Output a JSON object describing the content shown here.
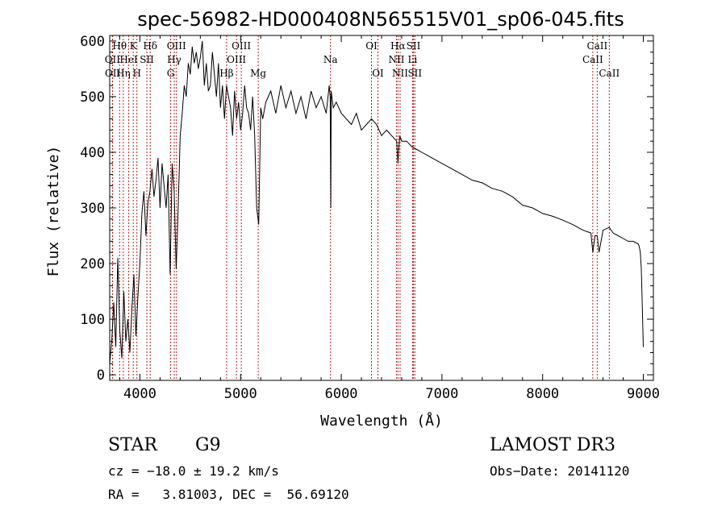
{
  "chart_data": {
    "type": "line",
    "title": "spec-56982-HD000408N565515V01_sp06-045.fits",
    "xlabel": "Wavelength (Å)",
    "ylabel": "Flux (relative)",
    "xlim": [
      3700,
      9100
    ],
    "ylim": [
      -10,
      610
    ],
    "xticks": [
      4000,
      5000,
      6000,
      7000,
      8000,
      9000
    ],
    "yticks": [
      0,
      100,
      200,
      300,
      400,
      500,
      600
    ],
    "grid": false,
    "series": [
      {
        "x": [
          3700,
          3720,
          3740,
          3760,
          3780,
          3800,
          3820,
          3840,
          3860,
          3880,
          3900,
          3920,
          3940,
          3960,
          3980,
          4000,
          4020,
          4040,
          4060,
          4080,
          4100,
          4120,
          4140,
          4160,
          4180,
          4200,
          4220,
          4240,
          4260,
          4280,
          4300,
          4320,
          4340,
          4360,
          4380,
          4400,
          4420,
          4440,
          4460,
          4480,
          4500,
          4520,
          4540,
          4560,
          4580,
          4600,
          4620,
          4640,
          4660,
          4680,
          4700,
          4720,
          4740,
          4760,
          4780,
          4800,
          4820,
          4840,
          4860,
          4880,
          4900,
          4920,
          4940,
          4960,
          4980,
          5000,
          5020,
          5040,
          5060,
          5080,
          5100,
          5120,
          5140,
          5160,
          5180,
          5200,
          5220,
          5250,
          5300,
          5350,
          5400,
          5450,
          5500,
          5550,
          5600,
          5650,
          5700,
          5750,
          5800,
          5850,
          5880,
          5890,
          5896,
          5900,
          5920,
          5950,
          6000,
          6050,
          6100,
          6150,
          6200,
          6250,
          6300,
          6350,
          6400,
          6450,
          6500,
          6550,
          6563,
          6580,
          6600,
          6650,
          6700,
          6750,
          6800,
          6850,
          6900,
          6950,
          7000,
          7100,
          7200,
          7300,
          7400,
          7500,
          7600,
          7700,
          7800,
          7900,
          8000,
          8100,
          8200,
          8300,
          8400,
          8480,
          8498,
          8520,
          8542,
          8560,
          8600,
          8662,
          8700,
          8750,
          8800,
          8850,
          8900,
          8950,
          8960,
          8970,
          8980,
          8990,
          9000
        ],
        "y": [
          20,
          60,
          130,
          50,
          210,
          80,
          30,
          150,
          60,
          100,
          40,
          120,
          180,
          70,
          140,
          200,
          290,
          330,
          250,
          310,
          330,
          370,
          320,
          350,
          390,
          300,
          380,
          340,
          300,
          360,
          180,
          380,
          330,
          190,
          300,
          430,
          470,
          520,
          500,
          560,
          540,
          590,
          560,
          580,
          550,
          570,
          600,
          520,
          560,
          510,
          520,
          580,
          540,
          500,
          560,
          480,
          520,
          460,
          520,
          500,
          480,
          430,
          510,
          460,
          490,
          440,
          470,
          520,
          480,
          470,
          440,
          500,
          430,
          300,
          270,
          480,
          460,
          490,
          510,
          470,
          520,
          480,
          510,
          470,
          500,
          460,
          510,
          480,
          500,
          470,
          520,
          500,
          300,
          510,
          480,
          490,
          470,
          460,
          450,
          470,
          440,
          450,
          460,
          450,
          430,
          440,
          430,
          420,
          380,
          430,
          420,
          420,
          410,
          405,
          400,
          395,
          390,
          385,
          380,
          370,
          360,
          350,
          345,
          335,
          330,
          320,
          305,
          300,
          290,
          285,
          278,
          270,
          260,
          255,
          220,
          250,
          250,
          220,
          260,
          265,
          255,
          250,
          245,
          240,
          240,
          235,
          230,
          220,
          190,
          120,
          50
        ]
      }
    ],
    "spectral_lines": [
      {
        "label": "Hθ",
        "x": 3798,
        "row": 0
      },
      {
        "label": "OII",
        "x": 3727,
        "row": 1
      },
      {
        "label": "OII",
        "x": 3729,
        "row": 2
      },
      {
        "label": "HeI",
        "x": 3889,
        "row": 1
      },
      {
        "label": "Hη",
        "x": 3835,
        "row": 2
      },
      {
        "label": "K",
        "x": 3934,
        "row": 0
      },
      {
        "label": "SII",
        "x": 4069,
        "row": 1
      },
      {
        "label": "H",
        "x": 3970,
        "row": 2
      },
      {
        "label": "Hδ",
        "x": 4102,
        "row": 0
      },
      {
        "label": "OIII",
        "x": 4363,
        "row": 0
      },
      {
        "label": "Hγ",
        "x": 4341,
        "row": 1
      },
      {
        "label": "G",
        "x": 4305,
        "row": 2
      },
      {
        "label": "Hβ",
        "x": 4861,
        "row": 2
      },
      {
        "label": "OIII",
        "x": 5007,
        "row": 0
      },
      {
        "label": "OIII",
        "x": 4959,
        "row": 1
      },
      {
        "label": "Mg",
        "x": 5175,
        "row": 2
      },
      {
        "label": "Na",
        "x": 5893,
        "row": 1
      },
      {
        "label": "OI",
        "x": 6300,
        "row": 0
      },
      {
        "label": "OI",
        "x": 6364,
        "row": 2
      },
      {
        "label": "Hα",
        "x": 6563,
        "row": 0
      },
      {
        "label": "SII",
        "x": 6717,
        "row": 0
      },
      {
        "label": "NII",
        "x": 6548,
        "row": 1
      },
      {
        "label": "Li",
        "x": 6708,
        "row": 1
      },
      {
        "label": "NII",
        "x": 6584,
        "row": 2
      },
      {
        "label": "SII",
        "x": 6731,
        "row": 2
      },
      {
        "label": "CaII",
        "x": 8542,
        "row": 0
      },
      {
        "label": "CaII",
        "x": 8498,
        "row": 1
      },
      {
        "label": "CaII",
        "x": 8662,
        "row": 2
      }
    ],
    "colors": {
      "spectrum": "#000000",
      "lines": "#b22222"
    }
  },
  "info": {
    "object_class": "STAR",
    "subclass": "G9",
    "survey": "LAMOST DR3",
    "cz": "cz = −18.0 ± 19.2 km/s",
    "obs_date": "Obs−Date: 20141120",
    "coords": "RA =   3.81003, DEC =  56.69120"
  }
}
